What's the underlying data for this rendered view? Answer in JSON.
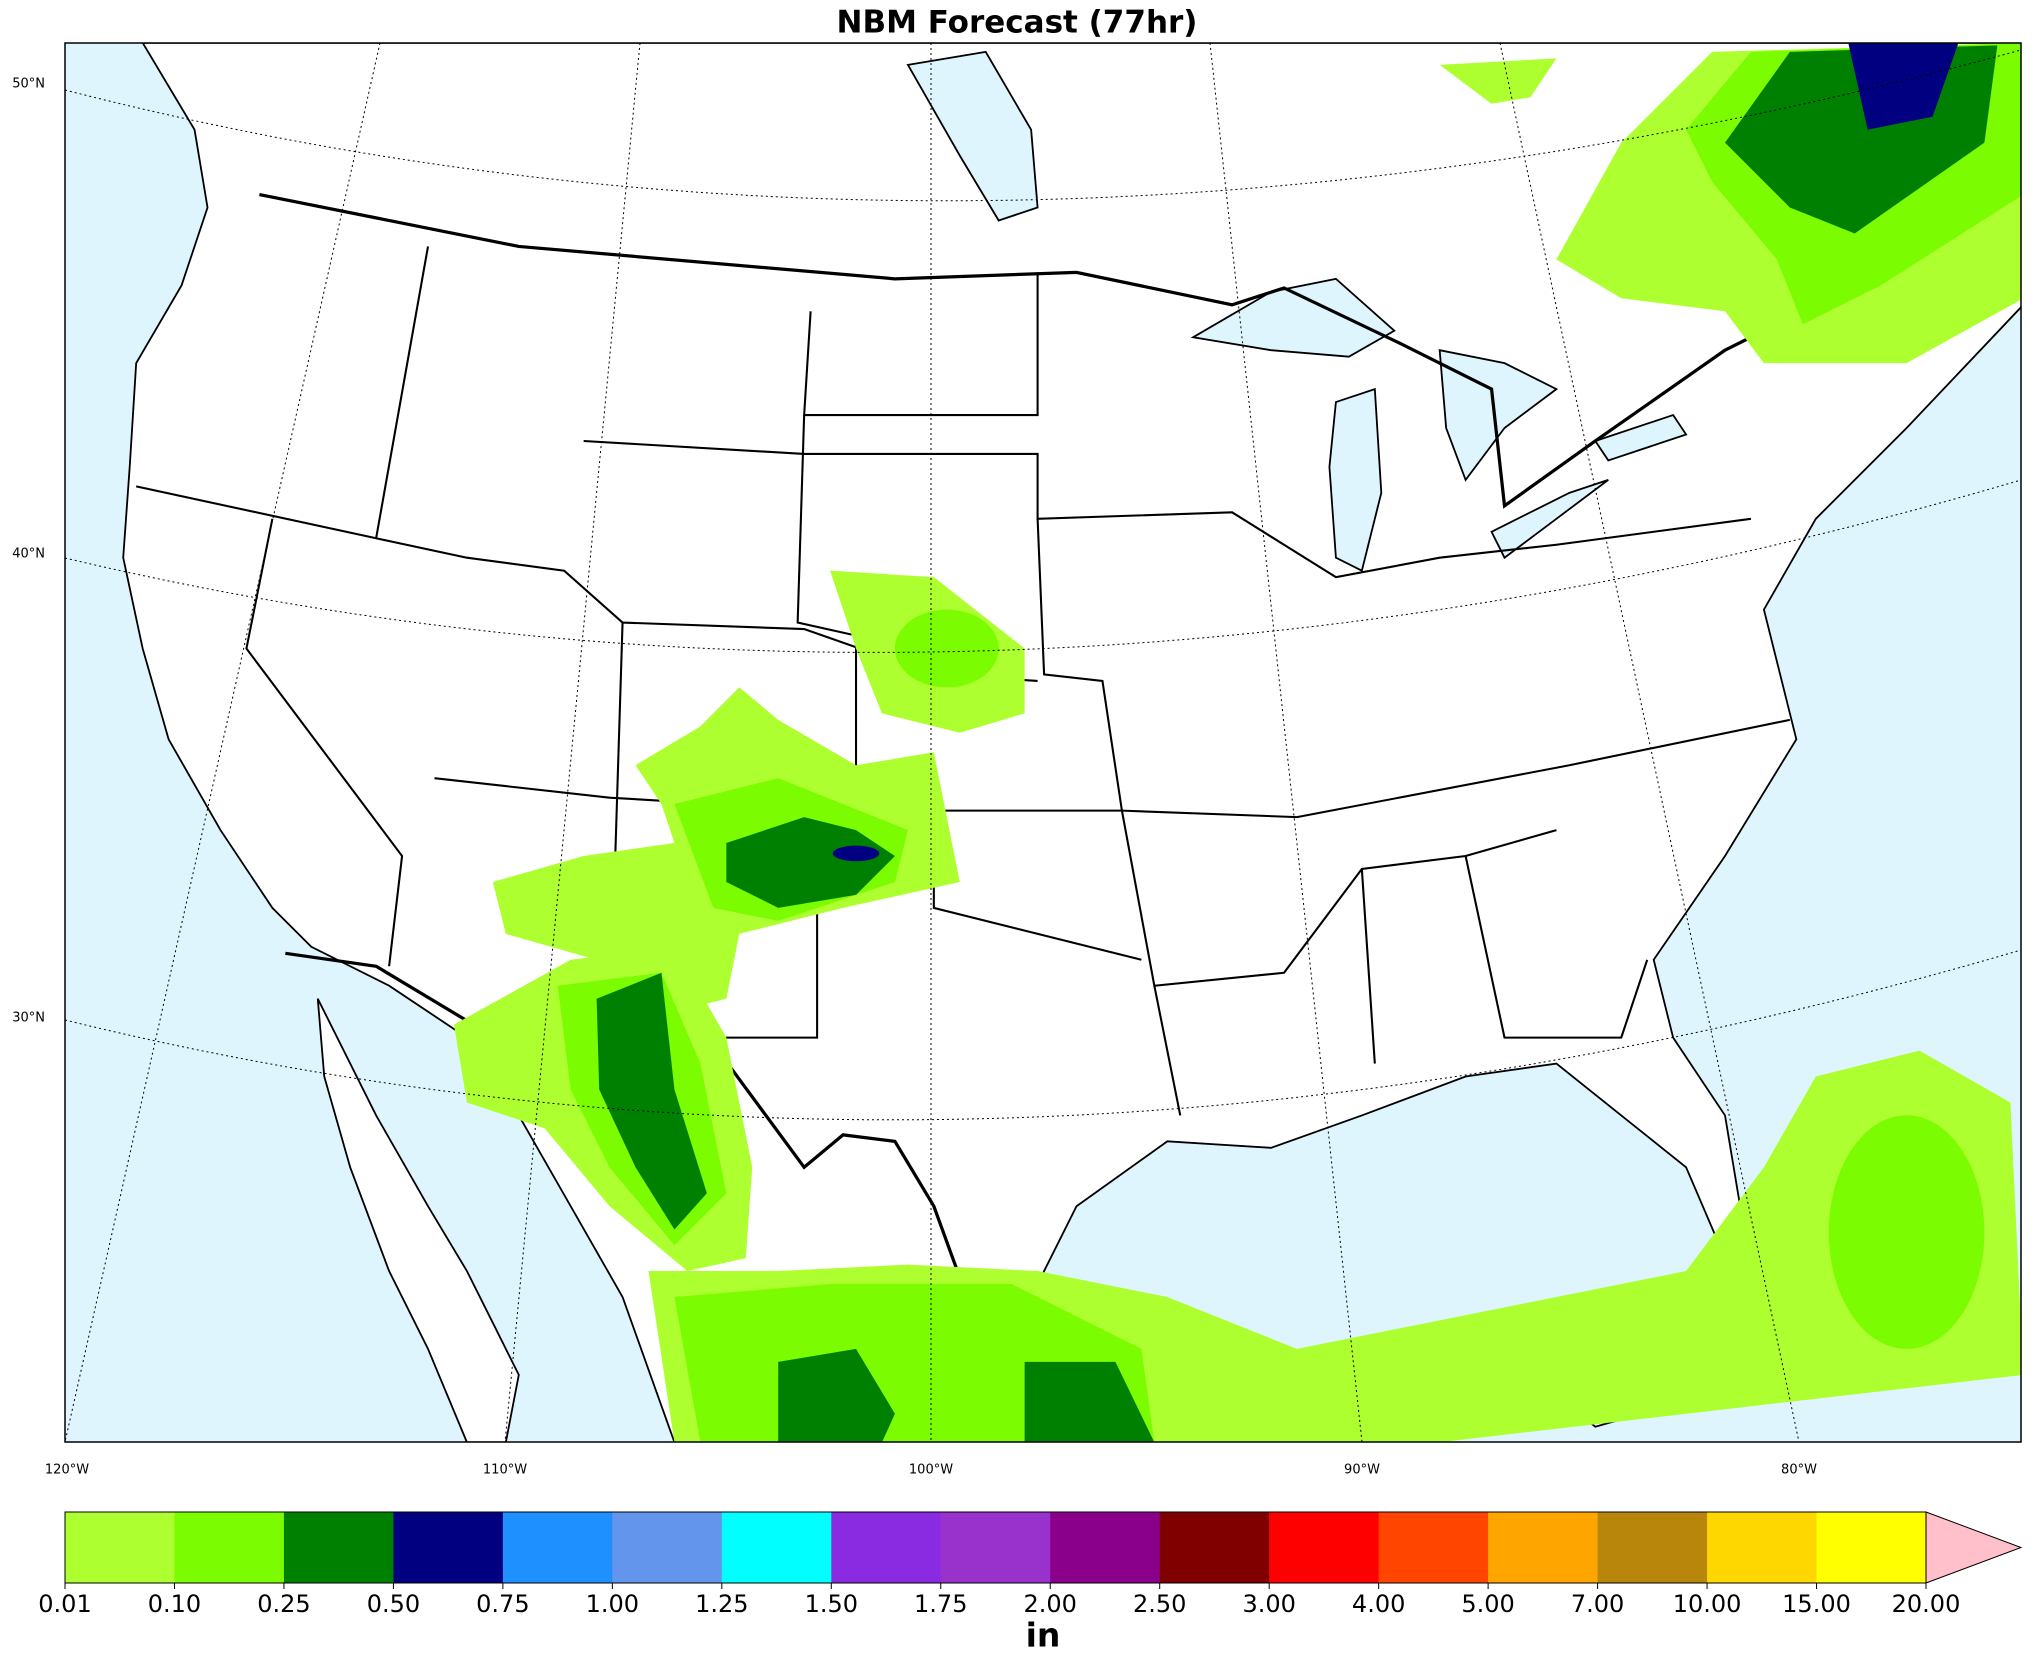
{
  "title": "NBM Forecast (77hr)",
  "lat_labels": [
    "50°N",
    "40°N",
    "30°N"
  ],
  "lon_labels": [
    "120°W",
    "110°W",
    "100°W",
    "90°W",
    "80°W"
  ],
  "colorbar": {
    "levels": [
      {
        "value": 0.01,
        "label": "0.01"
      },
      {
        "value": 0.1,
        "label": "0.10"
      },
      {
        "value": 0.25,
        "label": "0.25"
      },
      {
        "value": 0.5,
        "label": "0.50"
      },
      {
        "value": 0.75,
        "label": "0.75"
      },
      {
        "value": 1,
        "label": "1.00"
      },
      {
        "value": 1.25,
        "label": "1.25"
      },
      {
        "value": 1.5,
        "label": "1.50"
      },
      {
        "value": 1.75,
        "label": "1.75"
      },
      {
        "value": 2,
        "label": "2.00"
      },
      {
        "value": 2.5,
        "label": "2.50"
      },
      {
        "value": 3,
        "label": "3.00"
      },
      {
        "value": 4,
        "label": "4.00"
      },
      {
        "value": 5,
        "label": "5.00"
      },
      {
        "value": 7,
        "label": "7.00"
      },
      {
        "value": 10,
        "label": "10.00"
      },
      {
        "value": 15,
        "label": "15.00"
      },
      {
        "value": 20,
        "label": "20.00"
      }
    ],
    "colors": [
      "#adff2f",
      "#7cfc00",
      "#008000",
      "#000080",
      "#1e90ff",
      "#6495ed",
      "#00ffff",
      "#8a2be2",
      "#9932cc",
      "#8b008b",
      "#800000",
      "#ff0000",
      "#ff4500",
      "#ffa500",
      "#b8860b",
      "#ffd700",
      "#ffff00"
    ],
    "extend_color": "#ffc0cb",
    "unit": "in"
  }
}
